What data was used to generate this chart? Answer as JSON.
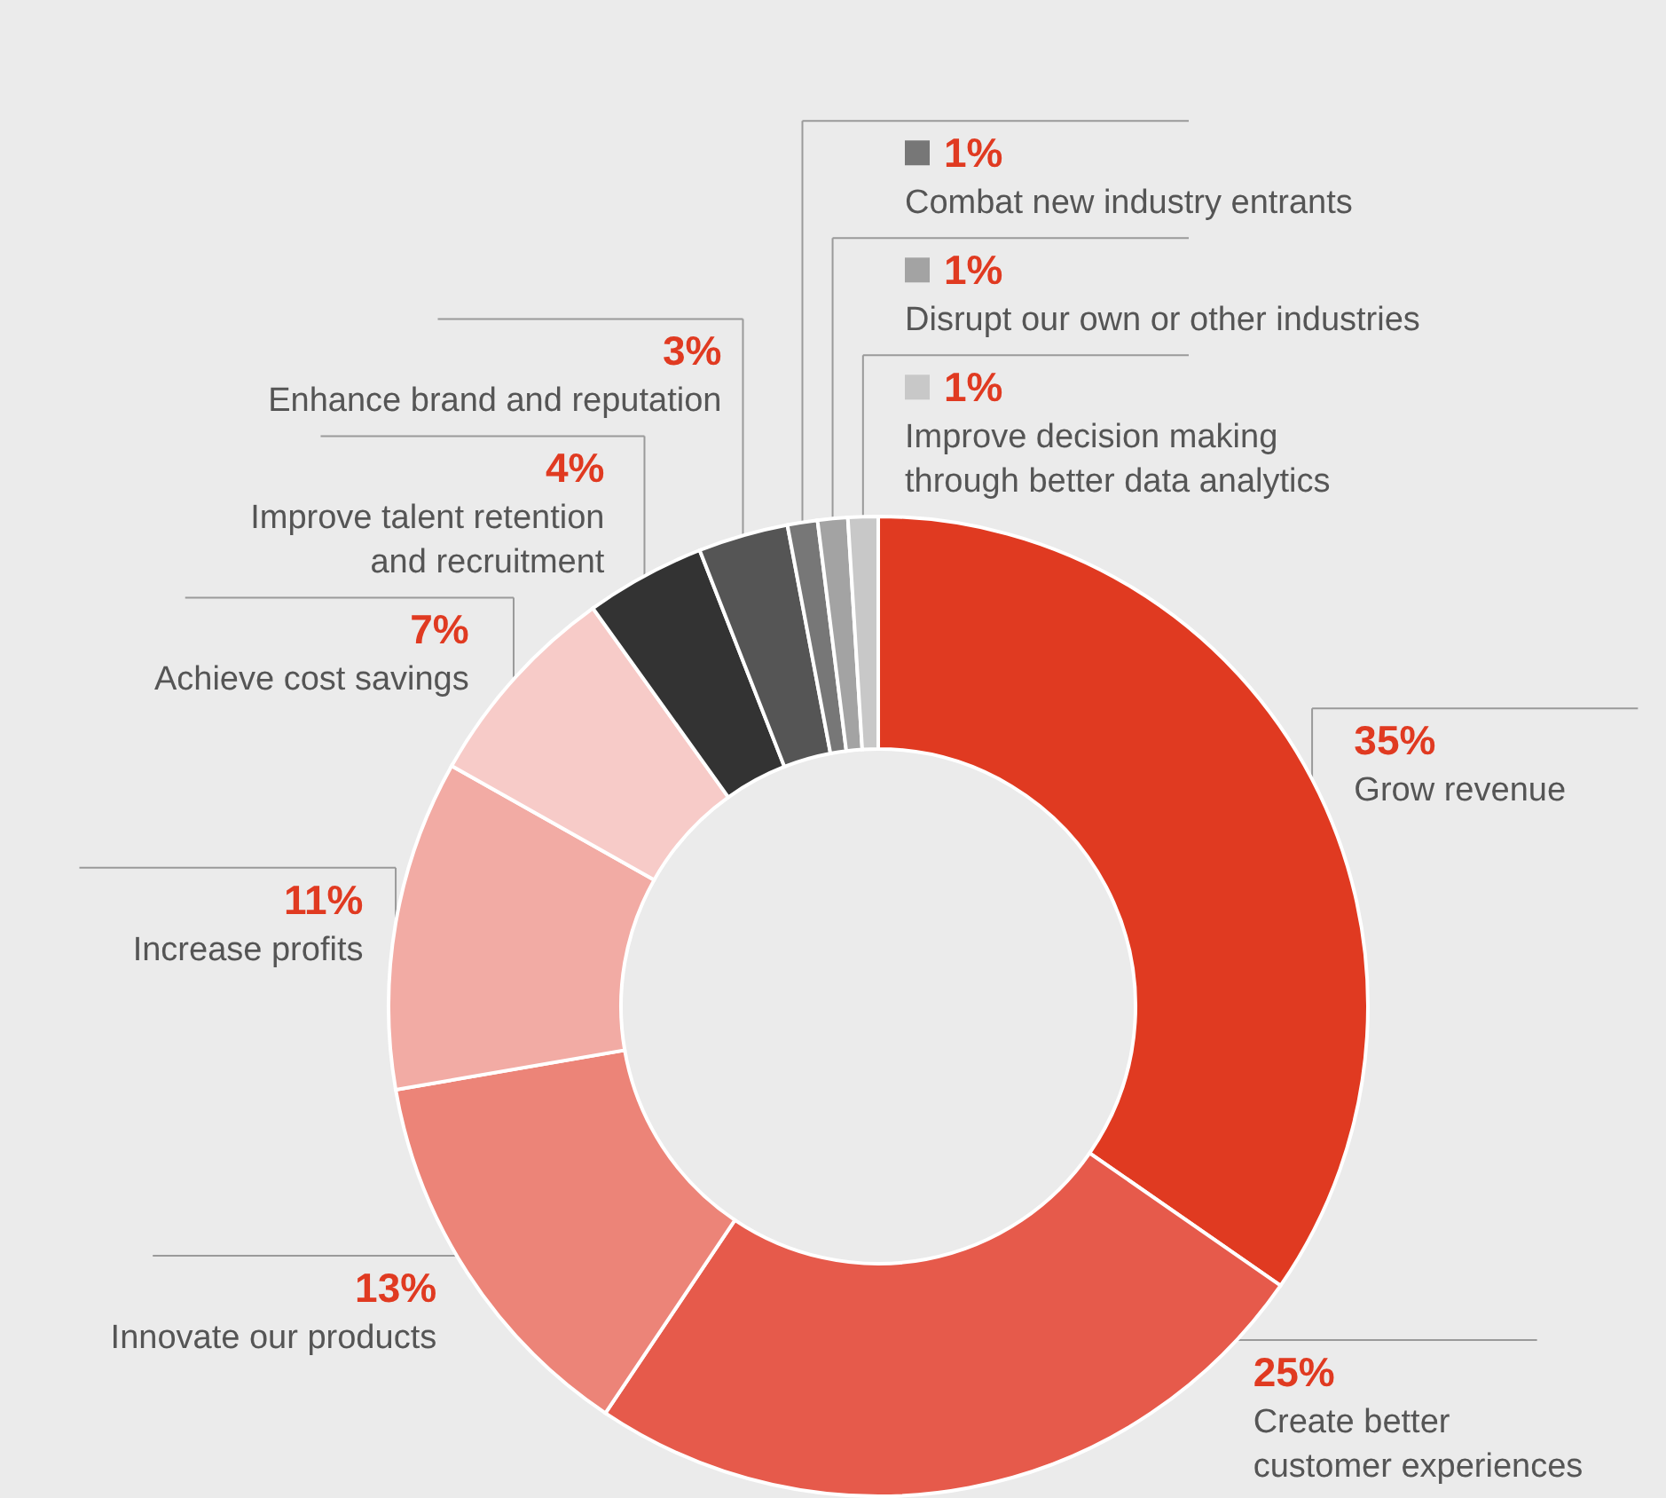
{
  "chart_data": {
    "type": "donut",
    "categories": [
      "Grow revenue",
      "Create better\ncustomer experiences",
      "Innovate our products",
      "Increase profits",
      "Achieve cost savings",
      "Improve talent retention\nand recruitment",
      "Enhance brand and reputation",
      "Combat new industry entrants",
      "Disrupt our own or other industries",
      "Improve decision making\nthrough better data analytics"
    ],
    "values": [
      35,
      25,
      13,
      11,
      7,
      4,
      3,
      1,
      1,
      1
    ],
    "value_labels": [
      "35%",
      "25%",
      "13%",
      "11%",
      "7%",
      "4%",
      "3%",
      "1%",
      "1%",
      "1%"
    ],
    "legend": "top right",
    "colors": [
      "#e03a21",
      "#e65a4b",
      "#ec8478",
      "#f2aba4",
      "#f7cbc8",
      "#333333",
      "#555555",
      "#777777",
      "#a3a3a3",
      "#c8c8c8"
    ]
  }
}
